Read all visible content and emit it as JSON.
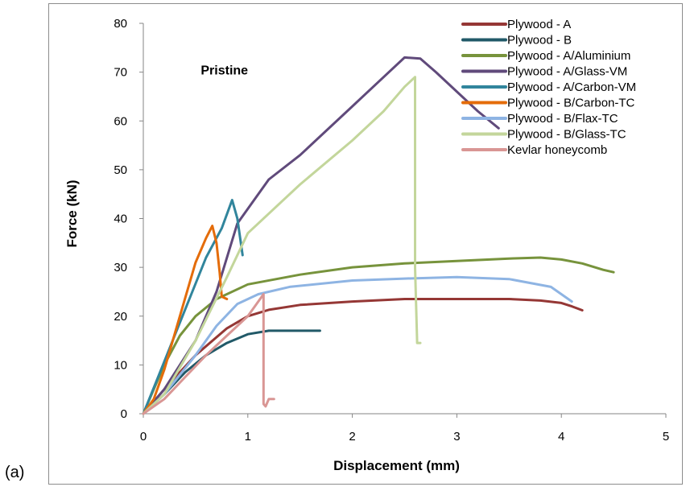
{
  "panel_label": "(a)",
  "chart_data": {
    "type": "line",
    "title": "",
    "xlabel": "Displacement (mm)",
    "ylabel": "Force (kN)",
    "xlim": [
      0,
      5
    ],
    "ylim": [
      0,
      80
    ],
    "xticks": [
      0,
      1,
      2,
      3,
      4,
      5
    ],
    "yticks": [
      0,
      10,
      20,
      30,
      40,
      50,
      60,
      70,
      80
    ],
    "grid": false,
    "legend_position": "top-right",
    "annotations": [
      {
        "text": "Pristine",
        "x": 0.55,
        "y": 69.5
      }
    ],
    "series": [
      {
        "name": "Plywood - A",
        "color": "#953735",
        "x": [
          0,
          0.2,
          0.5,
          0.8,
          1.0,
          1.2,
          1.5,
          2.0,
          2.5,
          3.0,
          3.5,
          3.8,
          4.0,
          4.1,
          4.2
        ],
        "y": [
          0,
          5,
          12,
          17.5,
          20,
          21.3,
          22.3,
          23,
          23.5,
          23.5,
          23.5,
          23.2,
          22.7,
          22,
          21.2
        ]
      },
      {
        "name": "Plywood - B",
        "color": "#215968",
        "x": [
          0,
          0.2,
          0.4,
          0.6,
          0.8,
          1.0,
          1.2,
          1.4,
          1.6,
          1.69
        ],
        "y": [
          0,
          4,
          8.5,
          12,
          14.5,
          16.3,
          17,
          17,
          17,
          17
        ]
      },
      {
        "name": "Plywood - A/Aluminium",
        "color": "#77933C",
        "x": [
          0,
          0.1,
          0.2,
          0.35,
          0.5,
          0.7,
          1.0,
          1.5,
          2.0,
          2.5,
          3.0,
          3.5,
          3.8,
          4.0,
          4.2,
          4.4,
          4.5
        ],
        "y": [
          0,
          5,
          10,
          16,
          20,
          23.5,
          26.5,
          28.5,
          30,
          30.8,
          31.3,
          31.8,
          32,
          31.6,
          30.8,
          29.5,
          29
        ]
      },
      {
        "name": "Plywood - A/Glass-VM",
        "color": "#604A7B",
        "x": [
          0,
          0.2,
          0.5,
          0.7,
          0.9,
          1.2,
          1.5,
          2.0,
          2.3,
          2.5,
          2.65,
          2.8,
          3.0,
          3.2,
          3.4
        ],
        "y": [
          0,
          5,
          15,
          25,
          39,
          48,
          53,
          63,
          69,
          73,
          72.8,
          70,
          66,
          62,
          58.5
        ]
      },
      {
        "name": "Plywood - A/Carbon-VM",
        "color": "#31859C",
        "x": [
          0,
          0.15,
          0.3,
          0.45,
          0.6,
          0.75,
          0.85,
          0.9,
          0.95
        ],
        "y": [
          0,
          8,
          16,
          24,
          32,
          38,
          43.8,
          40,
          32.5
        ]
      },
      {
        "name": "Plywood - B/Carbon-TC",
        "color": "#E46C0A",
        "x": [
          0,
          0.1,
          0.2,
          0.35,
          0.5,
          0.6,
          0.66,
          0.7,
          0.73,
          0.75,
          0.8
        ],
        "y": [
          0,
          3,
          9,
          20,
          31,
          36,
          38.5,
          35,
          29,
          24,
          23.5
        ]
      },
      {
        "name": "Plywood - B/Flax-TC",
        "color": "#8EB4E3",
        "x": [
          0,
          0.2,
          0.5,
          0.7,
          0.9,
          1.1,
          1.4,
          2.0,
          2.5,
          3.0,
          3.5,
          3.9,
          4.0,
          4.1
        ],
        "y": [
          0,
          4,
          12,
          18,
          22.5,
          24.5,
          26,
          27.3,
          27.7,
          28,
          27.6,
          26,
          24.5,
          23
        ]
      },
      {
        "name": "Plywood - B/Glass-TC",
        "color": "#C3D69B",
        "x": [
          0,
          0.2,
          0.5,
          0.8,
          1.0,
          1.5,
          2.0,
          2.3,
          2.5,
          2.6,
          2.6,
          2.62,
          2.65
        ],
        "y": [
          0,
          4,
          15,
          28,
          37,
          47,
          56,
          62,
          67,
          69,
          30,
          14.5,
          14.5
        ]
      },
      {
        "name": "Kevlar honeycomb",
        "color": "#D99694",
        "x": [
          0,
          0.2,
          0.4,
          0.6,
          0.8,
          1.0,
          1.15,
          1.15,
          1.17,
          1.2,
          1.25
        ],
        "y": [
          0,
          3,
          7.5,
          12,
          16,
          20,
          24.5,
          2,
          1.5,
          3,
          3
        ]
      }
    ]
  }
}
